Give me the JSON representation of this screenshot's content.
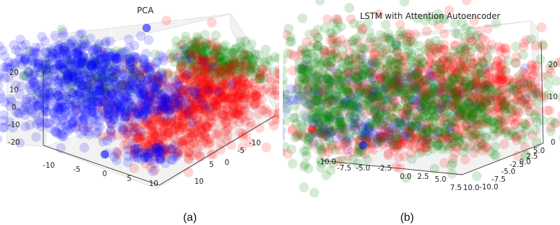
{
  "chart_data": [
    {
      "type": "scatter",
      "title": "PCA",
      "caption": "(a)",
      "x_ticks": [
        "-10",
        "-5",
        "0",
        "5",
        "10"
      ],
      "y_ticks": [
        "-10",
        "-5",
        "0",
        "5",
        "10"
      ],
      "z_ticks": [
        "-20",
        "-10",
        "0",
        "10",
        "20"
      ],
      "series": [
        {
          "color": "#0000ff"
        },
        {
          "color": "#ff0000"
        },
        {
          "color": "#008000"
        }
      ]
    },
    {
      "type": "scatter",
      "title": "LSTM with Attention Autoencoder",
      "caption": "(b)",
      "x_ticks": [
        "-10.0",
        "-7.5",
        "-5.0",
        "-2.5",
        "0.0",
        "2.5",
        "5.0",
        "7.5",
        "10.0"
      ],
      "y_ticks": [
        "-10.0",
        "-7.5",
        "-5.0",
        "-2.5",
        "0.0",
        "2.5",
        "5.0"
      ],
      "z_ticks": [
        "0",
        "10",
        "20"
      ],
      "series": [
        {
          "color": "#0000ff"
        },
        {
          "color": "#ff0000"
        },
        {
          "color": "#008000"
        }
      ]
    }
  ]
}
